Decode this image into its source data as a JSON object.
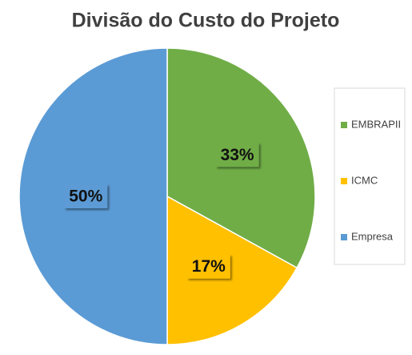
{
  "chart_data": {
    "type": "pie",
    "title": "Divisão do Custo do Projeto",
    "categories": [
      "EMBRAPII",
      "ICMC",
      "Empresa"
    ],
    "values": [
      33,
      17,
      50
    ],
    "value_labels": [
      "33%",
      "17%",
      "50%"
    ],
    "colors": [
      "#70ad47",
      "#ffc000",
      "#5b9bd5"
    ],
    "legend": "right"
  }
}
